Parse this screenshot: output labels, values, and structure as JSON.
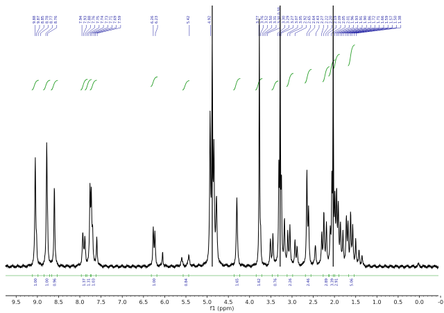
{
  "chart_data": {
    "type": "line",
    "title": "",
    "xlabel": "f1 (ppm)",
    "ylabel": "",
    "xlim": [
      9.75,
      -0.45
    ],
    "x_reversed": true,
    "xticks": [
      "9.5",
      "9.0",
      "8.5",
      "8.0",
      "7.5",
      "7.0",
      "6.5",
      "6.0",
      "5.5",
      "5.0",
      "4.5",
      "4.0",
      "3.5",
      "3.0",
      "2.5",
      "2.0",
      "1.5",
      "1.0",
      "0.5",
      "0.0",
      "-0"
    ],
    "xtick_values": [
      9.5,
      9.0,
      8.5,
      8.0,
      7.5,
      7.0,
      6.5,
      6.0,
      5.5,
      5.0,
      4.5,
      4.0,
      3.5,
      3.0,
      2.5,
      2.0,
      1.5,
      1.0,
      0.5,
      0.0,
      -0.5
    ],
    "peak_labels": [
      {
        "text": "9.88",
        "ppm": 9.05
      },
      {
        "text": "9.87",
        "ppm": 9.02
      },
      {
        "text": "8.85",
        "ppm": 8.98
      },
      {
        "text": "8.78",
        "ppm": 8.93
      },
      {
        "text": "8.77",
        "ppm": 8.8
      },
      {
        "text": "8.76",
        "ppm": 8.76
      },
      {
        "text": "7.94",
        "ppm": 7.95
      },
      {
        "text": "7.93",
        "ppm": 7.91
      },
      {
        "text": "7.88",
        "ppm": 7.87
      },
      {
        "text": "7.76",
        "ppm": 7.83
      },
      {
        "text": "7.75",
        "ppm": 7.79
      },
      {
        "text": "7.74",
        "ppm": 7.75
      },
      {
        "text": "7.73",
        "ppm": 7.71
      },
      {
        "text": "7.71",
        "ppm": 7.67
      },
      {
        "text": "7.69",
        "ppm": 7.63
      },
      {
        "text": "7.59",
        "ppm": 7.59
      },
      {
        "text": "6.26",
        "ppm": 6.27
      },
      {
        "text": "6.23",
        "ppm": 6.22
      },
      {
        "text": "5.42",
        "ppm": 5.42
      },
      {
        "text": "4.92",
        "ppm": 4.92
      },
      {
        "text": "3.77",
        "ppm": 3.78
      },
      {
        "text": "3.76",
        "ppm": 3.74
      },
      {
        "text": "3.52",
        "ppm": 3.7
      },
      {
        "text": "3.50",
        "ppm": 3.66
      },
      {
        "text": "3.31",
        "ppm": 3.62
      },
      {
        "text": "3.30 0.30",
        "ppm": 3.58
      },
      {
        "text": "3.30",
        "ppm": 3.34
      },
      {
        "text": "3.29",
        "ppm": 3.3
      },
      {
        "text": "3.27",
        "ppm": 3.26
      },
      {
        "text": "3.07",
        "ppm": 3.1
      },
      {
        "text": "3.05",
        "ppm": 3.05
      },
      {
        "text": "2.92",
        "ppm": 2.93
      },
      {
        "text": "2.65",
        "ppm": 2.65
      },
      {
        "text": "2.64",
        "ppm": 2.6
      },
      {
        "text": "2.43",
        "ppm": 2.44
      },
      {
        "text": "2.27",
        "ppm": 2.3
      },
      {
        "text": "2.22",
        "ppm": 2.25
      },
      {
        "text": "2.20",
        "ppm": 2.2
      },
      {
        "text": "2.19",
        "ppm": 2.15
      },
      {
        "text": "2.09",
        "ppm": 2.07
      },
      {
        "text": "2.05",
        "ppm": 2.03
      },
      {
        "text": "2.01",
        "ppm": 1.99
      },
      {
        "text": "1.96",
        "ppm": 1.95
      },
      {
        "text": "1.93",
        "ppm": 1.91
      },
      {
        "text": "1.91",
        "ppm": 1.87
      },
      {
        "text": "1.90",
        "ppm": 1.83
      },
      {
        "text": "1.86",
        "ppm": 1.79
      },
      {
        "text": "1.72",
        "ppm": 1.74
      },
      {
        "text": "1.71",
        "ppm": 1.7
      },
      {
        "text": "1.66",
        "ppm": 1.66
      },
      {
        "text": "1.59",
        "ppm": 1.62
      },
      {
        "text": "1.57",
        "ppm": 1.58
      },
      {
        "text": "1.50",
        "ppm": 1.54
      },
      {
        "text": "1.38",
        "ppm": 1.49
      }
    ],
    "integrals": [
      {
        "ppm": 9.05,
        "value": "1.00"
      },
      {
        "ppm": 8.78,
        "value": "1.00"
      },
      {
        "ppm": 8.6,
        "value": "0.96"
      },
      {
        "ppm": 7.9,
        "value": "1.37"
      },
      {
        "ppm": 7.8,
        "value": "1.31"
      },
      {
        "ppm": 7.68,
        "value": "1.03"
      },
      {
        "ppm": 6.25,
        "value": "1.00"
      },
      {
        "ppm": 5.5,
        "value": "0.84"
      },
      {
        "ppm": 4.3,
        "value": "1.65"
      },
      {
        "ppm": 3.78,
        "value": "1.62"
      },
      {
        "ppm": 3.4,
        "value": "0.76"
      },
      {
        "ppm": 3.05,
        "value": "2.26"
      },
      {
        "ppm": 2.62,
        "value": "2.46"
      },
      {
        "ppm": 2.2,
        "value": "2.89"
      },
      {
        "ppm": 2.06,
        "value": "3.39"
      },
      {
        "ppm": 1.96,
        "value": "2.91"
      },
      {
        "ppm": 1.6,
        "value": "5.06"
      }
    ],
    "peaks": [
      {
        "ppm": 9.05,
        "h": 0.42,
        "w": 0.012
      },
      {
        "ppm": 9.02,
        "h": 0.08,
        "w": 0.01
      },
      {
        "ppm": 8.78,
        "h": 0.46,
        "w": 0.012
      },
      {
        "ppm": 8.76,
        "h": 0.1,
        "w": 0.01
      },
      {
        "ppm": 8.6,
        "h": 0.32,
        "w": 0.012
      },
      {
        "ppm": 7.93,
        "h": 0.12,
        "w": 0.015
      },
      {
        "ppm": 7.88,
        "h": 0.1,
        "w": 0.015
      },
      {
        "ppm": 7.76,
        "h": 0.28,
        "w": 0.012
      },
      {
        "ppm": 7.73,
        "h": 0.26,
        "w": 0.012
      },
      {
        "ppm": 7.7,
        "h": 0.12,
        "w": 0.012
      },
      {
        "ppm": 7.6,
        "h": 0.11,
        "w": 0.012
      },
      {
        "ppm": 6.27,
        "h": 0.15,
        "w": 0.012
      },
      {
        "ppm": 6.23,
        "h": 0.12,
        "w": 0.012
      },
      {
        "ppm": 6.05,
        "h": 0.06,
        "w": 0.01
      },
      {
        "ppm": 5.6,
        "h": 0.03,
        "w": 0.02
      },
      {
        "ppm": 5.43,
        "h": 0.04,
        "w": 0.02
      },
      {
        "ppm": 4.93,
        "h": 0.55,
        "w": 0.012
      },
      {
        "ppm": 4.88,
        "h": 0.8,
        "w": 0.012
      },
      {
        "ppm": 4.84,
        "h": 0.4,
        "w": 0.012
      },
      {
        "ppm": 4.78,
        "h": 0.25,
        "w": 0.015
      },
      {
        "ppm": 4.3,
        "h": 0.26,
        "w": 0.015
      },
      {
        "ppm": 3.77,
        "h": 0.95,
        "w": 0.008
      },
      {
        "ppm": 3.74,
        "h": 0.1,
        "w": 0.01
      },
      {
        "ppm": 3.51,
        "h": 0.1,
        "w": 0.012
      },
      {
        "ppm": 3.45,
        "h": 0.12,
        "w": 0.012
      },
      {
        "ppm": 3.31,
        "h": 0.35,
        "w": 0.01
      },
      {
        "ppm": 3.28,
        "h": 0.9,
        "w": 0.008
      },
      {
        "ppm": 3.25,
        "h": 0.3,
        "w": 0.01
      },
      {
        "ppm": 3.18,
        "h": 0.18,
        "w": 0.012
      },
      {
        "ppm": 3.1,
        "h": 0.12,
        "w": 0.012
      },
      {
        "ppm": 3.05,
        "h": 0.15,
        "w": 0.012
      },
      {
        "ppm": 2.93,
        "h": 0.1,
        "w": 0.012
      },
      {
        "ppm": 2.88,
        "h": 0.07,
        "w": 0.012
      },
      {
        "ppm": 2.65,
        "h": 0.36,
        "w": 0.012
      },
      {
        "ppm": 2.61,
        "h": 0.2,
        "w": 0.012
      },
      {
        "ppm": 2.45,
        "h": 0.08,
        "w": 0.015
      },
      {
        "ppm": 2.3,
        "h": 0.12,
        "w": 0.012
      },
      {
        "ppm": 2.25,
        "h": 0.2,
        "w": 0.012
      },
      {
        "ppm": 2.19,
        "h": 0.16,
        "w": 0.012
      },
      {
        "ppm": 2.1,
        "h": 0.12,
        "w": 0.012
      },
      {
        "ppm": 2.06,
        "h": 0.3,
        "w": 0.01
      },
      {
        "ppm": 2.03,
        "h": 0.85,
        "w": 0.008
      },
      {
        "ppm": 1.99,
        "h": 0.22,
        "w": 0.012
      },
      {
        "ppm": 1.95,
        "h": 0.26,
        "w": 0.012
      },
      {
        "ppm": 1.91,
        "h": 0.22,
        "w": 0.012
      },
      {
        "ppm": 1.86,
        "h": 0.15,
        "w": 0.012
      },
      {
        "ppm": 1.8,
        "h": 0.12,
        "w": 0.012
      },
      {
        "ppm": 1.72,
        "h": 0.18,
        "w": 0.012
      },
      {
        "ppm": 1.68,
        "h": 0.15,
        "w": 0.012
      },
      {
        "ppm": 1.62,
        "h": 0.2,
        "w": 0.012
      },
      {
        "ppm": 1.57,
        "h": 0.14,
        "w": 0.012
      },
      {
        "ppm": 1.5,
        "h": 0.1,
        "w": 0.012
      },
      {
        "ppm": 1.42,
        "h": 0.06,
        "w": 0.012
      },
      {
        "ppm": 1.35,
        "h": 0.04,
        "w": 0.012
      },
      {
        "ppm": 0.02,
        "h": 0.01,
        "w": 0.015
      }
    ],
    "grid": false,
    "legend": "none",
    "colors": {
      "spectrum": "#000000",
      "peak_labels": "#1a1aa0",
      "integral_curves": "#2ca02c",
      "axis": "#222222"
    }
  }
}
